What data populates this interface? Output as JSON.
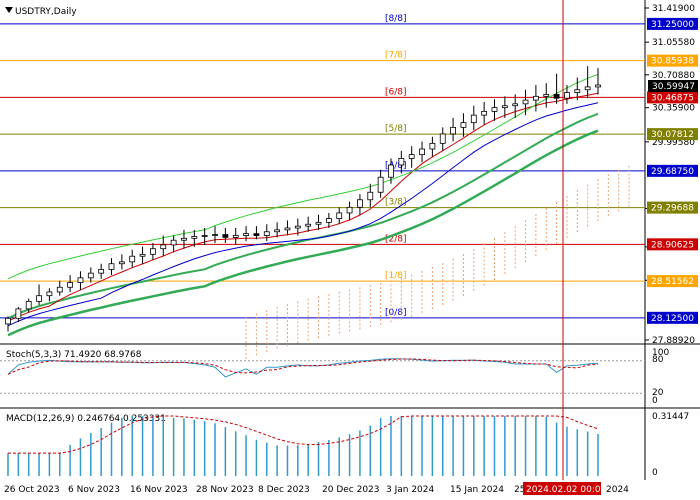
{
  "chart_data": {
    "type": "candlestick",
    "symbol_label": "USDTRY,Daily",
    "price_axis": {
      "min": 27.8892,
      "max": 31.419,
      "ticks": [
        "31.41900",
        "31.05580",
        "30.70880",
        "30.35900",
        "29.99580",
        "29.28688",
        "28.87920",
        "28.52390",
        "27.88920"
      ]
    },
    "murrey_levels": [
      {
        "label": "[8/8]",
        "value": 31.25,
        "value_label": "31.25000",
        "color": "#0000cc"
      },
      {
        "label": "[7/8]",
        "value": 30.85938,
        "value_label": "30.85938",
        "color": "#ffa500"
      },
      {
        "label": "[6/8]",
        "value": 30.46875,
        "value_label": "30.46875",
        "color": "#cc0000"
      },
      {
        "label": "[5/8]",
        "value": 30.07812,
        "value_label": "30.07812",
        "color": "#808000"
      },
      {
        "label": "[4/8]",
        "value": 29.6875,
        "value_label": "29.68750",
        "color": "#0000cc"
      },
      {
        "label": "[3/8]",
        "value": 29.29688,
        "value_label": "29.29688",
        "color": "#808000"
      },
      {
        "label": "[2/8]",
        "value": 28.90625,
        "value_label": "28.90625",
        "color": "#cc0000"
      },
      {
        "label": "[1/8]",
        "value": 28.51562,
        "value_label": "28.51562",
        "color": "#ffa500"
      },
      {
        "label": "[0/8]",
        "value": 28.125,
        "value_label": "28.12500",
        "color": "#0000cc"
      }
    ],
    "current_price": {
      "value": 30.59947,
      "label": "30.59947"
    },
    "dates": [
      "26 Oct 2023",
      "6 Nov 2023",
      "16 Nov 2023",
      "28 Nov 2023",
      "8 Dec 2023",
      "20 Dec 2023",
      "3 Jan 2024",
      "15 Jan 2024",
      "25 ...",
      "2024.02.02 00:00",
      "2024"
    ],
    "cursor_date": "2024.02.02 00:00",
    "candles": [
      [
        28.06,
        28.14,
        27.98,
        28.12
      ],
      [
        28.12,
        28.24,
        28.08,
        28.22
      ],
      [
        28.22,
        28.33,
        28.18,
        28.3
      ],
      [
        28.3,
        28.48,
        28.26,
        28.36
      ],
      [
        28.36,
        28.44,
        28.3,
        28.4
      ],
      [
        28.4,
        28.52,
        28.36,
        28.45
      ],
      [
        28.45,
        28.58,
        28.4,
        28.5
      ],
      [
        28.5,
        28.62,
        28.42,
        28.55
      ],
      [
        28.55,
        28.66,
        28.5,
        28.6
      ],
      [
        28.6,
        28.7,
        28.54,
        28.64
      ],
      [
        28.64,
        28.76,
        28.58,
        28.7
      ],
      [
        28.7,
        28.8,
        28.64,
        28.72
      ],
      [
        28.72,
        28.85,
        28.66,
        28.78
      ],
      [
        28.78,
        28.88,
        28.7,
        28.8
      ],
      [
        28.8,
        28.92,
        28.74,
        28.86
      ],
      [
        28.86,
        29.0,
        28.78,
        28.9
      ],
      [
        28.9,
        29.0,
        28.82,
        28.95
      ],
      [
        28.95,
        29.06,
        28.86,
        28.97
      ],
      [
        28.97,
        29.06,
        28.88,
        28.99
      ],
      [
        28.99,
        29.08,
        28.9,
        29.0
      ],
      [
        29.0,
        29.1,
        28.92,
        29.01
      ],
      [
        29.01,
        29.08,
        28.92,
        28.98
      ],
      [
        28.98,
        29.08,
        28.9,
        29.0
      ],
      [
        29.0,
        29.1,
        28.94,
        29.02
      ],
      [
        29.02,
        29.1,
        28.96,
        29.0
      ],
      [
        29.0,
        29.12,
        28.94,
        29.04
      ],
      [
        29.04,
        29.14,
        28.98,
        29.06
      ],
      [
        29.06,
        29.16,
        29.0,
        29.08
      ],
      [
        29.08,
        29.18,
        29.0,
        29.1
      ],
      [
        29.1,
        29.2,
        29.04,
        29.12
      ],
      [
        29.12,
        29.22,
        29.06,
        29.14
      ],
      [
        29.14,
        29.24,
        29.08,
        29.18
      ],
      [
        29.18,
        29.3,
        29.12,
        29.24
      ],
      [
        29.24,
        29.36,
        29.16,
        29.3
      ],
      [
        29.3,
        29.44,
        29.22,
        29.38
      ],
      [
        29.38,
        29.55,
        29.3,
        29.46
      ],
      [
        29.46,
        29.7,
        29.4,
        29.62
      ],
      [
        29.62,
        29.82,
        29.55,
        29.75
      ],
      [
        29.75,
        29.9,
        29.66,
        29.82
      ],
      [
        29.82,
        29.95,
        29.72,
        29.86
      ],
      [
        29.86,
        30.0,
        29.78,
        29.92
      ],
      [
        29.92,
        30.05,
        29.84,
        29.98
      ],
      [
        29.98,
        30.15,
        29.9,
        30.08
      ],
      [
        30.08,
        30.25,
        30.0,
        30.15
      ],
      [
        30.15,
        30.3,
        30.05,
        30.2
      ],
      [
        30.2,
        30.38,
        30.12,
        30.28
      ],
      [
        30.28,
        30.42,
        30.18,
        30.32
      ],
      [
        30.32,
        30.45,
        30.22,
        30.36
      ],
      [
        30.36,
        30.48,
        30.25,
        30.38
      ],
      [
        30.38,
        30.5,
        30.25,
        30.4
      ],
      [
        30.4,
        30.55,
        30.28,
        30.44
      ],
      [
        30.44,
        30.6,
        30.32,
        30.48
      ],
      [
        30.48,
        30.62,
        30.36,
        30.5
      ],
      [
        30.5,
        30.72,
        30.4,
        30.46
      ],
      [
        30.46,
        30.6,
        30.4,
        30.52
      ],
      [
        30.52,
        30.68,
        30.44,
        30.55
      ],
      [
        30.55,
        30.8,
        30.46,
        30.58
      ],
      [
        30.58,
        30.78,
        30.5,
        30.6
      ]
    ],
    "indicators": {
      "stoch_label": "Stoch(5,3,3) 71.4920 68.9768",
      "stoch_axis": [
        "100",
        "80",
        "20",
        "0"
      ],
      "macd_label": "MACD(12,26,9) 0.246764 0.253331",
      "macd_axis": [
        "0.31447",
        "0"
      ]
    }
  },
  "colors": {
    "bull": "#ffffff",
    "bear": "#000000",
    "envelope": "#33cc33",
    "ma_fast": "#cc0000",
    "ma_slow": "#0000cc",
    "ma_mid": "#33aa55",
    "cloud": "#e8a27a",
    "macd_hist": "#3399cc",
    "signal": "#cc0000"
  }
}
